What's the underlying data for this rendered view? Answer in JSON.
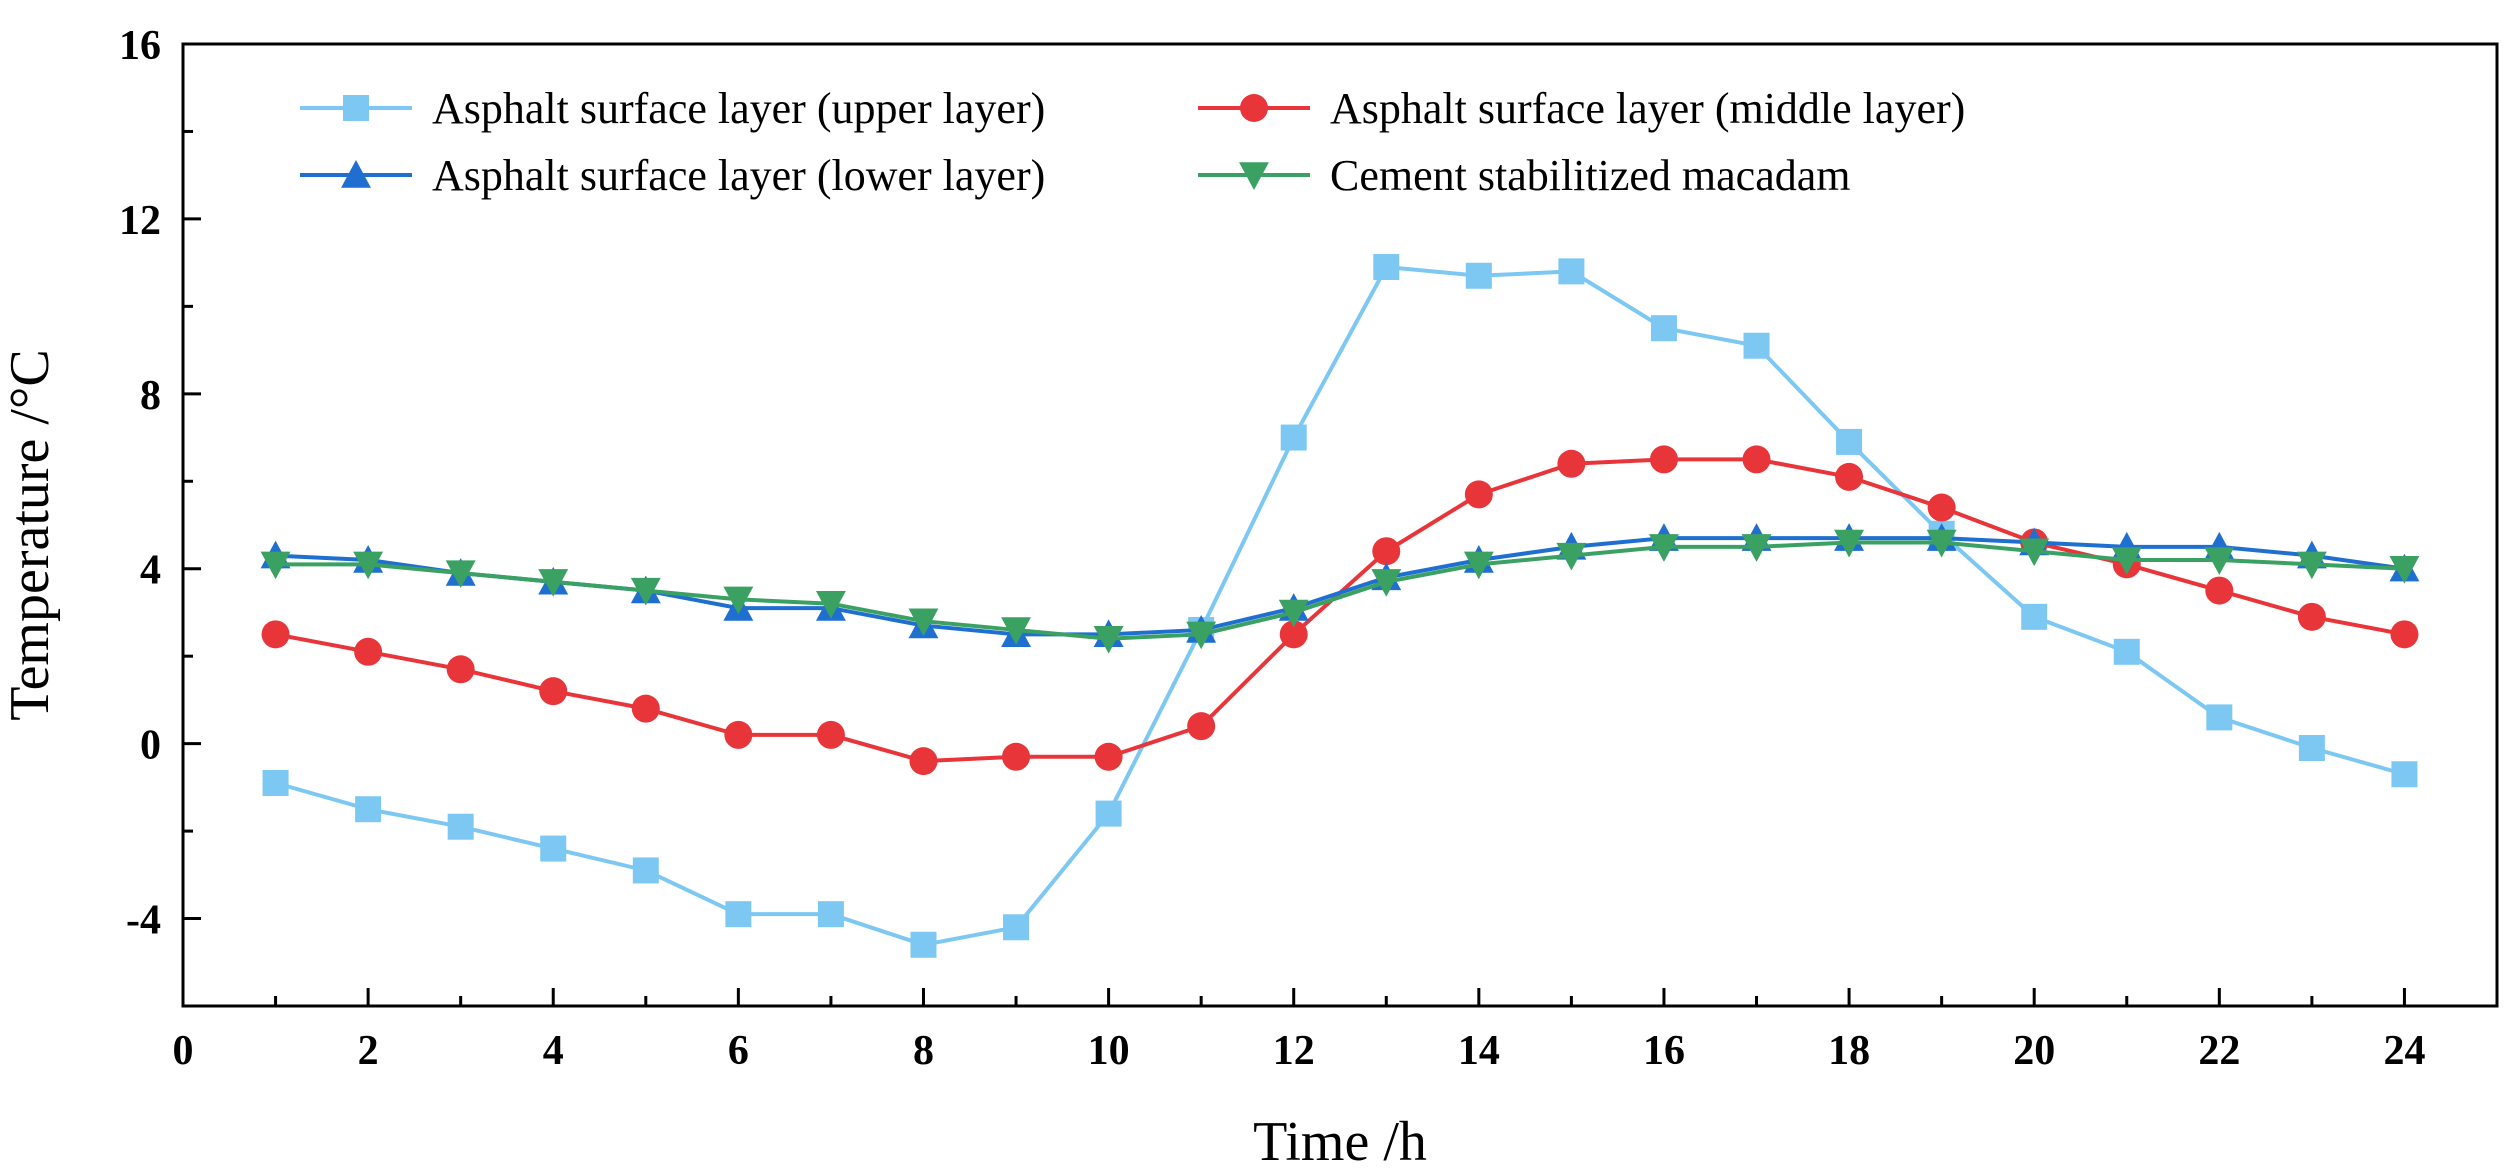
{
  "chart_data": {
    "type": "line",
    "title": "",
    "xlabel": "Time /h",
    "ylabel": "Temperature /°C",
    "xlim": [
      0,
      25
    ],
    "ylim": [
      -6,
      16
    ],
    "xticks": [
      0,
      2,
      4,
      6,
      8,
      10,
      12,
      14,
      16,
      18,
      20,
      22,
      24
    ],
    "yticks": [
      -4,
      0,
      4,
      8,
      12,
      16
    ],
    "x": [
      1,
      2,
      3,
      4,
      5,
      6,
      7,
      8,
      9,
      10,
      11,
      12,
      13,
      14,
      15,
      16,
      17,
      18,
      19,
      20,
      21,
      22,
      23,
      24
    ],
    "legend_position": "top-left",
    "series": [
      {
        "name": "Asphalt surface layer (upper layer)",
        "color": "#7dc8f2",
        "marker": "square",
        "values": [
          -0.9,
          -1.5,
          -1.9,
          -2.4,
          -2.9,
          -3.9,
          -3.9,
          -4.6,
          -4.2,
          -1.6,
          2.6,
          7.0,
          10.9,
          10.7,
          10.8,
          9.5,
          9.1,
          6.9,
          4.8,
          2.9,
          2.1,
          0.6,
          -0.1,
          -0.7
        ]
      },
      {
        "name": "Asphalt surface layer (middle layer)",
        "color": "#e8353a",
        "marker": "circle",
        "values": [
          2.5,
          2.1,
          1.7,
          1.2,
          0.8,
          0.2,
          0.2,
          -0.4,
          -0.3,
          -0.3,
          0.4,
          2.5,
          4.4,
          5.7,
          6.4,
          6.5,
          6.5,
          6.1,
          5.4,
          4.6,
          4.1,
          3.5,
          2.9,
          2.5
        ]
      },
      {
        "name": "Asphalt surface layer (lower layer)",
        "color": "#1f6fd1",
        "marker": "triangle-up",
        "values": [
          4.3,
          4.2,
          3.9,
          3.7,
          3.5,
          3.1,
          3.1,
          2.7,
          2.5,
          2.5,
          2.6,
          3.1,
          3.8,
          4.2,
          4.5,
          4.7,
          4.7,
          4.7,
          4.7,
          4.6,
          4.5,
          4.5,
          4.3,
          4.0
        ]
      },
      {
        "name": "Cement stabilitized macadam",
        "color": "#3aa163",
        "marker": "triangle-down",
        "values": [
          4.1,
          4.1,
          3.9,
          3.7,
          3.5,
          3.3,
          3.2,
          2.8,
          2.6,
          2.4,
          2.5,
          3.0,
          3.7,
          4.1,
          4.3,
          4.5,
          4.5,
          4.6,
          4.6,
          4.4,
          4.2,
          4.2,
          4.1,
          4.0
        ]
      }
    ]
  }
}
